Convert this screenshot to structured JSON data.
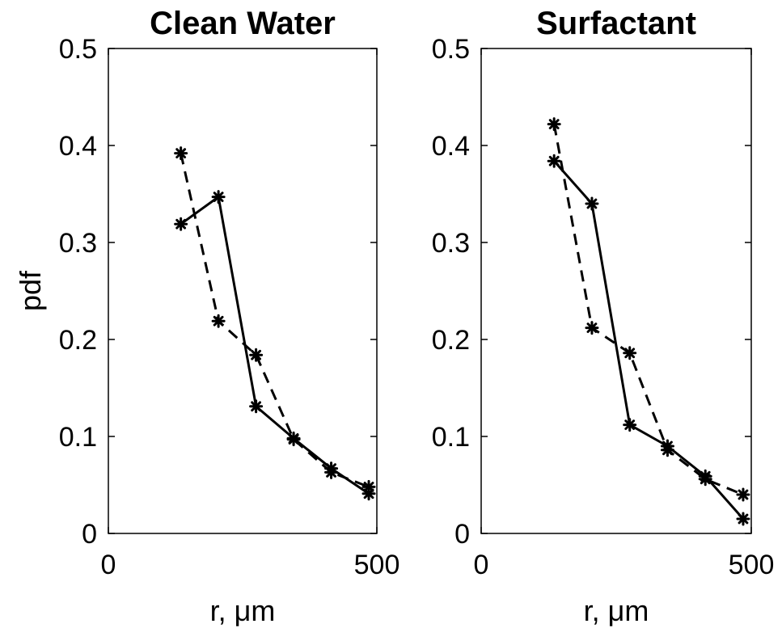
{
  "chart_data": [
    {
      "type": "line",
      "title": "Clean Water",
      "xlabel": "r, μm",
      "ylabel": "pdf",
      "xlim": [
        0,
        500
      ],
      "ylim": [
        0,
        0.5
      ],
      "xticks": [
        0,
        500
      ],
      "xtick_labels": [
        "0",
        "500"
      ],
      "yticks": [
        0,
        0.1,
        0.2,
        0.3,
        0.4,
        0.5
      ],
      "ytick_labels": [
        "0",
        "0.1",
        "0.2",
        "0.3",
        "0.4",
        "0.5"
      ],
      "grid": false,
      "series": [
        {
          "style": "solid",
          "marker": "asterisk",
          "x": [
            135,
            205,
            275,
            345,
            415,
            485
          ],
          "y": [
            0.319,
            0.347,
            0.131,
            0.098,
            0.067,
            0.041
          ]
        },
        {
          "style": "dashed",
          "marker": "asterisk",
          "x": [
            135,
            205,
            275,
            345,
            415,
            485
          ],
          "y": [
            0.392,
            0.219,
            0.184,
            0.097,
            0.063,
            0.048
          ]
        }
      ]
    },
    {
      "type": "line",
      "title": "Surfactant",
      "xlabel": "r, μm",
      "ylabel": "",
      "xlim": [
        0,
        500
      ],
      "ylim": [
        0,
        0.5
      ],
      "xticks": [
        0,
        500
      ],
      "xtick_labels": [
        "0",
        "500"
      ],
      "yticks": [
        0,
        0.1,
        0.2,
        0.3,
        0.4,
        0.5
      ],
      "ytick_labels": [
        "0",
        "0.1",
        "0.2",
        "0.3",
        "0.4",
        "0.5"
      ],
      "grid": false,
      "series": [
        {
          "style": "solid",
          "marker": "asterisk",
          "x": [
            135,
            205,
            275,
            345,
            415,
            485
          ],
          "y": [
            0.384,
            0.34,
            0.112,
            0.09,
            0.059,
            0.015
          ]
        },
        {
          "style": "dashed",
          "marker": "asterisk",
          "x": [
            135,
            205,
            275,
            345,
            415,
            485
          ],
          "y": [
            0.422,
            0.212,
            0.186,
            0.086,
            0.056,
            0.04
          ]
        }
      ]
    }
  ]
}
